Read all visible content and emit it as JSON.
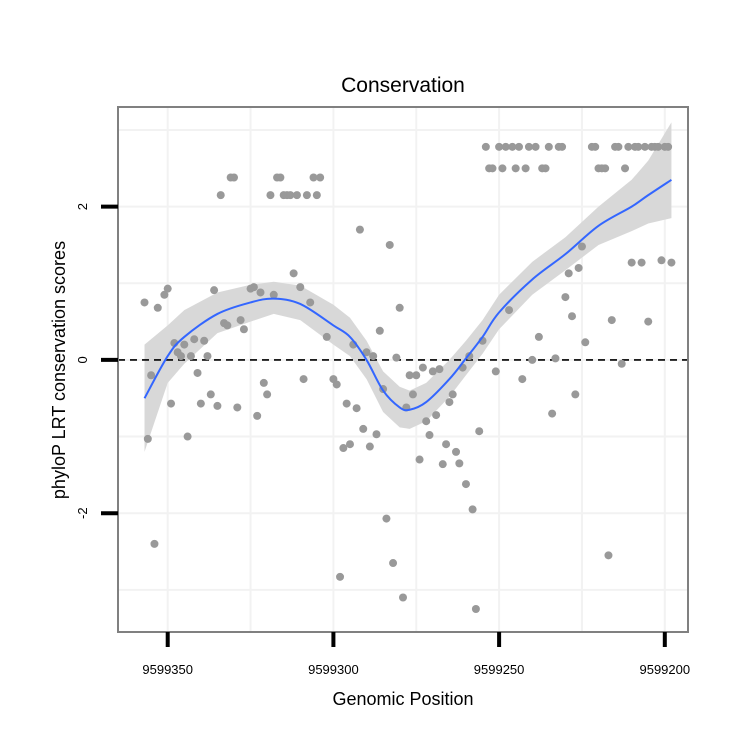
{
  "chart_data": {
    "type": "scatter",
    "title": "Conservation",
    "xlabel": "Genomic Position",
    "ylabel": "phyloP LRT conservation scores",
    "x_reversed": true,
    "xlim": [
      9599365,
      9599193
    ],
    "ylim": [
      -3.55,
      3.3
    ],
    "x_ticks": [
      9599350,
      9599300,
      9599250,
      9599200
    ],
    "x_tick_labels": [
      "9599350",
      "9599300",
      "9599250",
      "9599200"
    ],
    "y_ticks": [
      -2,
      0,
      2
    ],
    "y_tick_labels": [
      "-2",
      "0",
      "2"
    ],
    "grid": true,
    "reference_line": {
      "y": 0,
      "style": "dashed"
    },
    "colors": {
      "points": "#999999",
      "smooth_line": "#3366ff",
      "ribbon": "#d6d6d6",
      "panel_border": "#808080",
      "grid": "#f2f2f2"
    },
    "series": [
      {
        "type": "points",
        "points": [
          [
            9599357,
            0.75
          ],
          [
            9599356,
            -1.03
          ],
          [
            9599355,
            -0.2
          ],
          [
            9599354,
            -2.4
          ],
          [
            9599353,
            0.68
          ],
          [
            9599351,
            0.85
          ],
          [
            9599350,
            0.93
          ],
          [
            9599349,
            -0.57
          ],
          [
            9599348,
            0.22
          ],
          [
            9599347,
            0.1
          ],
          [
            9599346,
            0.05
          ],
          [
            9599345,
            0.2
          ],
          [
            9599344,
            -1.0
          ],
          [
            9599343,
            0.05
          ],
          [
            9599342,
            0.27
          ],
          [
            9599341,
            -0.17
          ],
          [
            9599340,
            -0.57
          ],
          [
            9599339,
            0.25
          ],
          [
            9599338,
            0.05
          ],
          [
            9599337,
            -0.45
          ],
          [
            9599336,
            0.91
          ],
          [
            9599335,
            -0.6
          ],
          [
            9599334,
            2.15
          ],
          [
            9599333,
            0.48
          ],
          [
            9599332,
            0.45
          ],
          [
            9599331,
            2.38
          ],
          [
            9599330,
            2.38
          ],
          [
            9599329,
            -0.62
          ],
          [
            9599328,
            0.52
          ],
          [
            9599327,
            0.4
          ],
          [
            9599325,
            0.93
          ],
          [
            9599324,
            0.95
          ],
          [
            9599323,
            -0.73
          ],
          [
            9599322,
            0.88
          ],
          [
            9599321,
            -0.3
          ],
          [
            9599320,
            -0.45
          ],
          [
            9599319,
            2.15
          ],
          [
            9599318,
            0.85
          ],
          [
            9599317,
            2.38
          ],
          [
            9599316,
            2.38
          ],
          [
            9599315,
            2.15
          ],
          [
            9599314,
            2.15
          ],
          [
            9599313,
            2.15
          ],
          [
            9599312,
            1.13
          ],
          [
            9599311,
            2.15
          ],
          [
            9599310,
            0.95
          ],
          [
            9599309,
            -0.25
          ],
          [
            9599308,
            2.15
          ],
          [
            9599307,
            0.75
          ],
          [
            9599306,
            2.38
          ],
          [
            9599305,
            2.15
          ],
          [
            9599304,
            2.38
          ],
          [
            9599302,
            0.3
          ],
          [
            9599300,
            -0.25
          ],
          [
            9599299,
            -0.32
          ],
          [
            9599298,
            -2.83
          ],
          [
            9599297,
            -1.15
          ],
          [
            9599296,
            -0.57
          ],
          [
            9599295,
            -1.1
          ],
          [
            9599294,
            0.2
          ],
          [
            9599293,
            -0.63
          ],
          [
            9599292,
            1.7
          ],
          [
            9599291,
            -0.9
          ],
          [
            9599290,
            0.1
          ],
          [
            9599289,
            -1.13
          ],
          [
            9599288,
            0.05
          ],
          [
            9599287,
            -0.97
          ],
          [
            9599286,
            0.38
          ],
          [
            9599285,
            -0.38
          ],
          [
            9599284,
            -2.07
          ],
          [
            9599283,
            1.5
          ],
          [
            9599282,
            -2.65
          ],
          [
            9599281,
            0.03
          ],
          [
            9599280,
            0.68
          ],
          [
            9599279,
            -3.1
          ],
          [
            9599278,
            -0.62
          ],
          [
            9599277,
            -0.2
          ],
          [
            9599276,
            -0.45
          ],
          [
            9599275,
            -0.2
          ],
          [
            9599274,
            -1.3
          ],
          [
            9599273,
            -0.1
          ],
          [
            9599272,
            -0.8
          ],
          [
            9599271,
            -0.98
          ],
          [
            9599270,
            -0.15
          ],
          [
            9599269,
            -0.72
          ],
          [
            9599268,
            -0.12
          ],
          [
            9599267,
            -1.36
          ],
          [
            9599266,
            -1.1
          ],
          [
            9599265,
            -0.55
          ],
          [
            9599264,
            -0.45
          ],
          [
            9599263,
            -1.2
          ],
          [
            9599262,
            -1.35
          ],
          [
            9599261,
            -0.1
          ],
          [
            9599260,
            -1.62
          ],
          [
            9599259,
            0.05
          ],
          [
            9599258,
            -1.95
          ],
          [
            9599257,
            -3.25
          ],
          [
            9599256,
            -0.93
          ],
          [
            9599255,
            0.25
          ],
          [
            9599254,
            2.78
          ],
          [
            9599253,
            2.5
          ],
          [
            9599252,
            2.5
          ],
          [
            9599251,
            -0.15
          ],
          [
            9599250,
            2.78
          ],
          [
            9599249,
            2.5
          ],
          [
            9599248,
            2.78
          ],
          [
            9599247,
            0.65
          ],
          [
            9599246,
            2.78
          ],
          [
            9599245,
            2.5
          ],
          [
            9599244,
            2.78
          ],
          [
            9599243,
            -0.25
          ],
          [
            9599242,
            2.5
          ],
          [
            9599241,
            2.78
          ],
          [
            9599240,
            0.0
          ],
          [
            9599239,
            2.78
          ],
          [
            9599238,
            0.3
          ],
          [
            9599237,
            2.5
          ],
          [
            9599236,
            2.5
          ],
          [
            9599235,
            2.78
          ],
          [
            9599234,
            -0.7
          ],
          [
            9599233,
            0.02
          ],
          [
            9599232,
            2.78
          ],
          [
            9599231,
            2.78
          ],
          [
            9599230,
            0.82
          ],
          [
            9599229,
            1.13
          ],
          [
            9599228,
            0.57
          ],
          [
            9599227,
            -0.45
          ],
          [
            9599226,
            1.2
          ],
          [
            9599225,
            1.48
          ],
          [
            9599224,
            0.23
          ],
          [
            9599222,
            2.78
          ],
          [
            9599221,
            2.78
          ],
          [
            9599220,
            2.5
          ],
          [
            9599219,
            2.5
          ],
          [
            9599218,
            2.5
          ],
          [
            9599217,
            -2.55
          ],
          [
            9599216,
            0.52
          ],
          [
            9599215,
            2.78
          ],
          [
            9599214,
            2.78
          ],
          [
            9599213,
            -0.05
          ],
          [
            9599212,
            2.5
          ],
          [
            9599211,
            2.78
          ],
          [
            9599210,
            1.27
          ],
          [
            9599209,
            2.78
          ],
          [
            9599208,
            2.78
          ],
          [
            9599207,
            1.27
          ],
          [
            9599206,
            2.78
          ],
          [
            9599205,
            0.5
          ],
          [
            9599204,
            2.78
          ],
          [
            9599203,
            2.78
          ],
          [
            9599202,
            2.78
          ],
          [
            9599201,
            1.3
          ],
          [
            9599200,
            2.78
          ],
          [
            9599199,
            2.78
          ],
          [
            9599198,
            1.27
          ]
        ]
      },
      {
        "type": "smooth",
        "points": [
          [
            9599357,
            -0.5,
            -1.2,
            0.2
          ],
          [
            9599350,
            0.05,
            -0.3,
            0.45
          ],
          [
            9599345,
            0.3,
            -0.05,
            0.65
          ],
          [
            9599335,
            0.6,
            0.35,
            0.88
          ],
          [
            9599325,
            0.75,
            0.5,
            0.98
          ],
          [
            9599318,
            0.8,
            0.6,
            1.02
          ],
          [
            9599310,
            0.73,
            0.52,
            0.97
          ],
          [
            9599300,
            0.45,
            0.2,
            0.72
          ],
          [
            9599295,
            0.3,
            0.05,
            0.55
          ],
          [
            9599290,
            0.0,
            -0.25,
            0.25
          ],
          [
            9599285,
            -0.4,
            -0.68,
            -0.15
          ],
          [
            9599280,
            -0.62,
            -0.88,
            -0.35
          ],
          [
            9599277,
            -0.65,
            -0.9,
            -0.4
          ],
          [
            9599272,
            -0.55,
            -0.8,
            -0.3
          ],
          [
            9599265,
            -0.25,
            -0.48,
            0.0
          ],
          [
            9599260,
            0.02,
            -0.2,
            0.25
          ],
          [
            9599255,
            0.3,
            0.08,
            0.52
          ],
          [
            9599250,
            0.62,
            0.4,
            0.85
          ],
          [
            9599240,
            1.05,
            0.85,
            1.28
          ],
          [
            9599230,
            1.38,
            1.17,
            1.6
          ],
          [
            9599220,
            1.75,
            1.5,
            2.0
          ],
          [
            9599210,
            2.0,
            1.68,
            2.35
          ],
          [
            9599205,
            2.15,
            1.78,
            2.6
          ],
          [
            9599198,
            2.35,
            1.85,
            3.1
          ]
        ]
      }
    ]
  }
}
